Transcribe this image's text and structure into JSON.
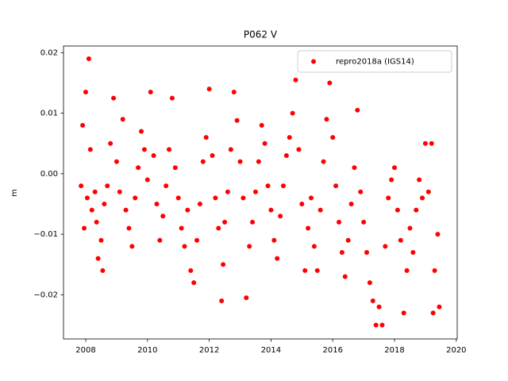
{
  "chart_data": {
    "type": "scatter",
    "title": "P062 V",
    "y_label": "m",
    "legend": "upper right",
    "grid": false,
    "xlim": [
      2007.28,
      2020.03
    ],
    "ylim": [
      -0.0273,
      0.0211
    ],
    "xticks": [
      2008,
      2010,
      2012,
      2014,
      2016,
      2018,
      2020
    ],
    "yticks": [
      {
        "value": -0.02,
        "label": "−0.02"
      },
      {
        "value": -0.01,
        "label": "−0.01"
      },
      {
        "value": 0,
        "label": "0.00"
      },
      0.01,
      0.02
    ],
    "x": [
      2007.85,
      2007.9,
      2007.95,
      2008.0,
      2008.05,
      2008.1,
      2008.15,
      2008.2,
      2008.3,
      2008.35,
      2008.4,
      2008.5,
      2008.55,
      2008.6,
      2008.7,
      2008.8,
      2008.9,
      2009.0,
      2009.1,
      2009.2,
      2009.3,
      2009.4,
      2009.5,
      2009.6,
      2009.7,
      2009.8,
      2009.9,
      2010.0,
      2010.1,
      2010.2,
      2010.3,
      2010.4,
      2010.5,
      2010.6,
      2010.7,
      2010.8,
      2010.9,
      2011.0,
      2011.1,
      2011.2,
      2011.3,
      2011.4,
      2011.5,
      2011.6,
      2011.7,
      2011.8,
      2011.9,
      2012.0,
      2012.1,
      2012.2,
      2012.3,
      2012.4,
      2012.45,
      2012.5,
      2012.6,
      2012.7,
      2012.8,
      2012.9,
      2013.0,
      2013.1,
      2013.2,
      2013.3,
      2013.4,
      2013.5,
      2013.6,
      2013.7,
      2013.8,
      2013.9,
      2014.0,
      2014.1,
      2014.2,
      2014.3,
      2014.4,
      2014.5,
      2014.6,
      2014.7,
      2014.8,
      2014.9,
      2015.0,
      2015.1,
      2015.2,
      2015.3,
      2015.4,
      2015.5,
      2015.6,
      2015.7,
      2015.8,
      2015.9,
      2016.0,
      2016.1,
      2016.2,
      2016.3,
      2016.4,
      2016.5,
      2016.6,
      2016.7,
      2016.8,
      2016.9,
      2017.0,
      2017.1,
      2017.2,
      2017.3,
      2017.4,
      2017.5,
      2017.6,
      2017.7,
      2017.8,
      2017.9,
      2018.0,
      2018.1,
      2018.2,
      2018.3,
      2018.4,
      2018.5,
      2018.6,
      2018.7,
      2018.8,
      2018.9,
      2019.0,
      2019.1,
      2019.2,
      2019.25,
      2019.3,
      2019.4,
      2019.45
    ],
    "series": [
      {
        "name": "repro2018a (IGS14)",
        "color": "#ff0000",
        "values": [
          -0.002,
          0.008,
          -0.009,
          0.0135,
          -0.004,
          0.019,
          0.004,
          -0.006,
          -0.003,
          -0.008,
          -0.014,
          -0.011,
          -0.016,
          -0.005,
          -0.002,
          0.005,
          0.0125,
          0.002,
          -0.003,
          0.009,
          -0.006,
          -0.009,
          -0.012,
          -0.004,
          0.001,
          0.007,
          0.004,
          -0.001,
          0.0135,
          0.003,
          -0.005,
          -0.011,
          -0.007,
          -0.002,
          0.004,
          0.0125,
          0.001,
          -0.004,
          -0.009,
          -0.012,
          -0.006,
          -0.016,
          -0.018,
          -0.011,
          -0.005,
          0.002,
          0.006,
          0.014,
          0.003,
          -0.004,
          -0.009,
          -0.021,
          -0.015,
          -0.008,
          -0.003,
          0.004,
          0.0135,
          0.0088,
          0.002,
          -0.004,
          -0.0205,
          -0.012,
          -0.008,
          -0.003,
          0.002,
          0.008,
          0.005,
          -0.002,
          -0.006,
          -0.011,
          -0.014,
          -0.007,
          -0.002,
          0.003,
          0.006,
          0.01,
          0.0155,
          0.004,
          -0.005,
          -0.016,
          -0.009,
          -0.004,
          -0.012,
          -0.016,
          -0.006,
          0.002,
          0.009,
          0.015,
          0.006,
          -0.002,
          -0.008,
          -0.013,
          -0.017,
          -0.011,
          -0.005,
          0.001,
          0.0105,
          -0.003,
          -0.008,
          -0.013,
          -0.018,
          -0.021,
          -0.025,
          -0.022,
          -0.025,
          -0.012,
          -0.004,
          -0.001,
          0.001,
          -0.006,
          -0.011,
          -0.023,
          -0.016,
          -0.009,
          -0.013,
          -0.006,
          -0.001,
          -0.004,
          0.005,
          -0.003,
          0.005,
          -0.023,
          -0.016,
          -0.01,
          -0.022
        ]
      }
    ]
  }
}
